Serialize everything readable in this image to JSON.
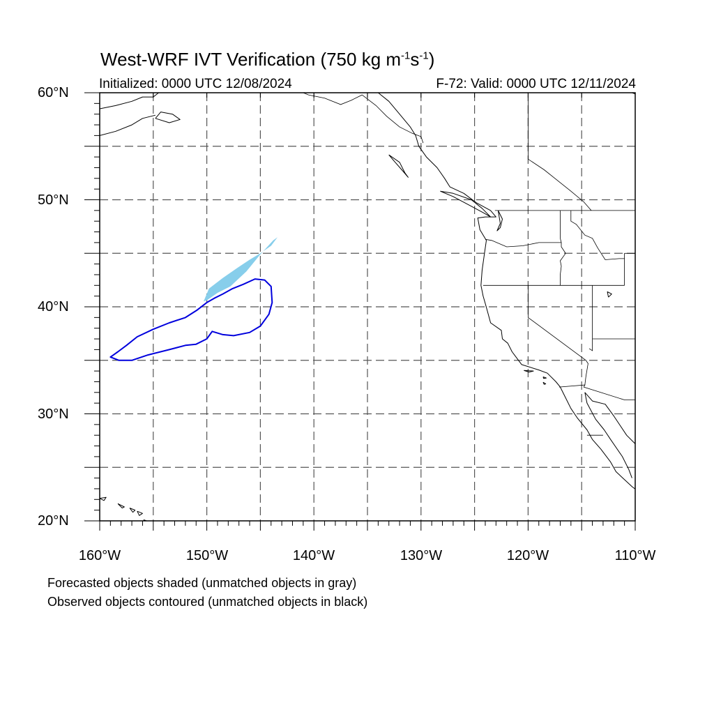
{
  "title": {
    "main": "West-WRF IVT Verification (750 kg m",
    "exp1": "-1",
    "mid": "s",
    "exp2": "-1",
    "end": ")"
  },
  "subtitle": {
    "left": "Initialized: 0000 UTC 12/08/2024",
    "right": "F-72: Valid: 0000 UTC 12/11/2024"
  },
  "lat_labels": [
    "60°N",
    "50°N",
    "40°N",
    "30°N",
    "20°N"
  ],
  "lon_labels": [
    "160°W",
    "150°W",
    "140°W",
    "130°W",
    "120°W",
    "110°W"
  ],
  "notes": {
    "line1": "Forecasted objects shaded (unmatched objects in gray)",
    "line2": "Observed objects contoured (unmatched objects in black)"
  },
  "map": {
    "lon_range": [
      -160,
      -110
    ],
    "lat_range": [
      20,
      60
    ],
    "grid_lon_step": 5,
    "grid_lat_step": 5,
    "grid_style": "dashed",
    "colors": {
      "forecast_fill": "#87ceeb",
      "observed_contour": "#0000dd",
      "coastline": "#000000",
      "grid": "#555555"
    },
    "forecast_object": [
      [
        -150.3,
        40.5
      ],
      [
        -149.8,
        41.7
      ],
      [
        -148.5,
        42.7
      ],
      [
        -147.2,
        43.6
      ],
      [
        -146.0,
        44.4
      ],
      [
        -145.0,
        45.0
      ],
      [
        -144.0,
        45.7
      ],
      [
        -143.4,
        46.5
      ],
      [
        -143.8,
        46.2
      ],
      [
        -145.0,
        44.9
      ],
      [
        -146.3,
        43.3
      ],
      [
        -147.8,
        41.9
      ],
      [
        -149.0,
        41.3
      ],
      [
        -150.0,
        40.6
      ]
    ],
    "observed_object": [
      [
        -159.0,
        35.3
      ],
      [
        -158.2,
        35.0
      ],
      [
        -157.0,
        35.0
      ],
      [
        -155.5,
        35.5
      ],
      [
        -153.5,
        36.0
      ],
      [
        -152.0,
        36.4
      ],
      [
        -151.0,
        36.5
      ],
      [
        -150.0,
        37.0
      ],
      [
        -149.5,
        37.7
      ],
      [
        -148.5,
        37.4
      ],
      [
        -147.5,
        37.3
      ],
      [
        -146.0,
        37.6
      ],
      [
        -145.0,
        38.2
      ],
      [
        -144.2,
        39.3
      ],
      [
        -143.9,
        40.4
      ],
      [
        -144.0,
        41.9
      ],
      [
        -144.6,
        42.5
      ],
      [
        -145.5,
        42.6
      ],
      [
        -146.6,
        42.1
      ],
      [
        -147.6,
        41.7
      ],
      [
        -148.5,
        41.2
      ],
      [
        -149.3,
        40.8
      ],
      [
        -150.0,
        40.4
      ],
      [
        -150.9,
        39.7
      ],
      [
        -152.0,
        39.0
      ],
      [
        -153.5,
        38.5
      ],
      [
        -155.0,
        37.9
      ],
      [
        -156.5,
        37.2
      ],
      [
        -157.5,
        36.4
      ],
      [
        -158.3,
        35.8
      ],
      [
        -159.0,
        35.3
      ]
    ],
    "coastlines": [
      [
        [
          -134.0,
          60.0
        ],
        [
          -133.0,
          59.2
        ],
        [
          -132.0,
          58.0
        ],
        [
          -131.0,
          56.8
        ],
        [
          -130.5,
          56.0
        ],
        [
          -130.2,
          55.0
        ],
        [
          -129.5,
          54.0
        ],
        [
          -128.5,
          53.0
        ],
        [
          -127.8,
          52.0
        ],
        [
          -127.3,
          51.2
        ],
        [
          -126.0,
          50.6
        ],
        [
          -124.8,
          49.7
        ],
        [
          -123.5,
          49.0
        ],
        [
          -123.0,
          48.4
        ],
        [
          -124.0,
          48.4
        ],
        [
          -124.7,
          48.3
        ],
        [
          -124.5,
          47.2
        ],
        [
          -123.9,
          46.2
        ],
        [
          -124.1,
          44.8
        ],
        [
          -124.3,
          43.4
        ],
        [
          -124.4,
          42.0
        ],
        [
          -124.2,
          41.0
        ],
        [
          -124.0,
          40.3
        ],
        [
          -123.8,
          39.6
        ],
        [
          -123.5,
          38.5
        ],
        [
          -122.5,
          37.8
        ],
        [
          -122.4,
          37.0
        ],
        [
          -121.9,
          36.6
        ],
        [
          -121.5,
          35.8
        ],
        [
          -120.6,
          34.6
        ],
        [
          -119.0,
          34.1
        ],
        [
          -118.2,
          33.8
        ],
        [
          -117.4,
          33.0
        ],
        [
          -117.0,
          32.5
        ],
        [
          -116.6,
          31.7
        ],
        [
          -116.0,
          30.5
        ],
        [
          -115.4,
          29.6
        ],
        [
          -114.5,
          28.5
        ],
        [
          -114.0,
          27.6
        ],
        [
          -113.2,
          26.7
        ],
        [
          -112.3,
          25.5
        ],
        [
          -111.8,
          24.6
        ],
        [
          -110.3,
          23.2
        ],
        [
          -109.9,
          22.9
        ]
      ],
      [
        [
          -114.7,
          32.0
        ],
        [
          -114.5,
          31.0
        ],
        [
          -113.7,
          29.5
        ],
        [
          -112.9,
          28.5
        ],
        [
          -112.3,
          27.6
        ],
        [
          -111.2,
          26.0
        ],
        [
          -110.6,
          24.8
        ],
        [
          -110.3,
          24.0
        ]
      ],
      [
        [
          -114.7,
          32.0
        ],
        [
          -114.0,
          31.2
        ],
        [
          -112.8,
          30.9
        ],
        [
          -112.0,
          29.8
        ],
        [
          -110.8,
          28.0
        ],
        [
          -110.0,
          27.2
        ]
      ],
      [
        [
          -128.2,
          50.8
        ],
        [
          -127.0,
          50.3
        ],
        [
          -125.5,
          49.5
        ],
        [
          -124.2,
          48.8
        ],
        [
          -123.5,
          48.4
        ],
        [
          -124.3,
          49.2
        ],
        [
          -125.3,
          50.0
        ],
        [
          -127.0,
          50.6
        ],
        [
          -128.2,
          50.8
        ]
      ],
      [
        [
          -133.0,
          54.2
        ],
        [
          -132.0,
          53.5
        ],
        [
          -131.5,
          52.5
        ],
        [
          -131.2,
          52.1
        ],
        [
          -131.8,
          52.8
        ],
        [
          -132.5,
          53.6
        ],
        [
          -133.0,
          54.2
        ]
      ],
      [
        [
          -160.0,
          58.5
        ],
        [
          -158.5,
          58.8
        ],
        [
          -157.0,
          59.2
        ],
        [
          -156.0,
          59.6
        ],
        [
          -155.0,
          59.6
        ],
        [
          -154.5,
          60.0
        ]
      ],
      [
        [
          -160.0,
          56.0
        ],
        [
          -158.5,
          56.4
        ],
        [
          -157.0,
          57.0
        ],
        [
          -156.0,
          57.6
        ],
        [
          -154.8,
          57.9
        ]
      ],
      [
        [
          -154.8,
          57.6
        ],
        [
          -153.5,
          57.2
        ],
        [
          -152.5,
          57.5
        ],
        [
          -153.2,
          58.0
        ],
        [
          -154.3,
          58.2
        ],
        [
          -154.8,
          57.6
        ]
      ],
      [
        [
          -110.3,
          60.0
        ],
        [
          -109.0,
          59.5
        ]
      ],
      [
        [
          -160.0,
          22.1
        ],
        [
          -159.4,
          22.2
        ],
        [
          -159.6,
          21.9
        ],
        [
          -160.0,
          22.1
        ]
      ],
      [
        [
          -158.3,
          21.6
        ],
        [
          -157.7,
          21.3
        ],
        [
          -157.9,
          21.2
        ],
        [
          -158.3,
          21.6
        ]
      ],
      [
        [
          -157.2,
          21.2
        ],
        [
          -156.7,
          21.0
        ],
        [
          -156.9,
          20.8
        ],
        [
          -157.2,
          21.2
        ]
      ],
      [
        [
          -156.5,
          20.9
        ],
        [
          -156.0,
          20.7
        ],
        [
          -156.3,
          20.5
        ],
        [
          -156.5,
          20.9
        ]
      ],
      [
        [
          -155.9,
          20.1
        ],
        [
          -155.0,
          19.8
        ],
        [
          -155.6,
          19.2
        ],
        [
          -155.9,
          20.1
        ]
      ],
      [
        [
          -120.4,
          34.05
        ],
        [
          -119.5,
          34.0
        ],
        [
          -119.9,
          33.9
        ],
        [
          -120.4,
          34.05
        ]
      ],
      [
        [
          -118.6,
          33.45
        ],
        [
          -118.3,
          33.35
        ],
        [
          -118.55,
          33.3
        ],
        [
          -118.6,
          33.45
        ]
      ],
      [
        [
          -118.6,
          32.95
        ],
        [
          -118.35,
          32.8
        ],
        [
          -118.5,
          32.75
        ],
        [
          -118.6,
          32.95
        ]
      ],
      [
        [
          -112.5,
          40.9
        ],
        [
          -112.2,
          41.2
        ],
        [
          -112.6,
          41.4
        ],
        [
          -112.5,
          40.9
        ]
      ],
      [
        [
          -122.8,
          49.0
        ],
        [
          -122.4,
          48.2
        ],
        [
          -122.6,
          47.4
        ],
        [
          -122.9,
          47.1
        ],
        [
          -122.6,
          47.8
        ],
        [
          -122.8,
          49.0
        ]
      ]
    ],
    "borders": [
      [
        [
          -141.0,
          60.0
        ],
        [
          -140.5,
          59.8
        ],
        [
          -139.0,
          59.5
        ],
        [
          -137.5,
          58.9
        ],
        [
          -136.5,
          59.3
        ],
        [
          -135.5,
          59.8
        ],
        [
          -134.2,
          58.8
        ],
        [
          -133.2,
          57.8
        ],
        [
          -132.0,
          56.8
        ],
        [
          -130.8,
          56.2
        ],
        [
          -130.0,
          55.9
        ],
        [
          -129.8,
          55.3
        ]
      ],
      [
        [
          -123.1,
          49.0
        ],
        [
          -110.0,
          49.0
        ]
      ],
      [
        [
          -117.0,
          49.0
        ],
        [
          -117.0,
          46.4
        ],
        [
          -116.9,
          46.0
        ],
        [
          -119.0,
          46.0
        ],
        [
          -120.5,
          45.7
        ],
        [
          -122.0,
          45.6
        ],
        [
          -123.4,
          46.2
        ],
        [
          -124.0,
          46.3
        ]
      ],
      [
        [
          -116.9,
          46.0
        ],
        [
          -116.9,
          45.6
        ],
        [
          -116.5,
          45.0
        ],
        [
          -117.0,
          44.3
        ],
        [
          -116.9,
          43.8
        ],
        [
          -117.0,
          43.0
        ],
        [
          -117.0,
          42.0
        ]
      ],
      [
        [
          -124.2,
          42.0
        ],
        [
          -111.0,
          42.0
        ]
      ],
      [
        [
          -120.0,
          42.0
        ],
        [
          -120.0,
          39.0
        ],
        [
          -114.6,
          35.0
        ],
        [
          -114.4,
          34.7
        ],
        [
          -114.6,
          33.5
        ],
        [
          -114.7,
          32.7
        ]
      ],
      [
        [
          -114.0,
          42.0
        ],
        [
          -114.0,
          37.0
        ],
        [
          -114.0,
          35.9
        ],
        [
          -114.3,
          36.1
        ]
      ],
      [
        [
          -114.0,
          37.0
        ],
        [
          -110.0,
          37.0
        ]
      ],
      [
        [
          -111.0,
          45.0
        ],
        [
          -111.0,
          42.0
        ]
      ],
      [
        [
          -111.0,
          45.0
        ],
        [
          -110.0,
          45.0
        ]
      ],
      [
        [
          -116.0,
          49.0
        ],
        [
          -116.0,
          48.0
        ],
        [
          -115.5,
          47.7
        ],
        [
          -114.7,
          46.7
        ],
        [
          -114.0,
          46.4
        ],
        [
          -113.5,
          45.5
        ],
        [
          -112.8,
          44.4
        ],
        [
          -111.5,
          44.5
        ],
        [
          -111.0,
          44.5
        ]
      ],
      [
        [
          -117.1,
          32.5
        ],
        [
          -114.7,
          32.7
        ],
        [
          -114.8,
          32.5
        ],
        [
          -111.0,
          31.3
        ],
        [
          -110.0,
          31.3
        ]
      ],
      [
        [
          -114.5,
          28.0
        ],
        [
          -113.0,
          28.0
        ]
      ],
      [
        [
          -109.5,
          60.0
        ],
        [
          -120.0,
          60.0
        ],
        [
          -120.0,
          53.8
        ],
        [
          -118.5,
          52.8
        ],
        [
          -117.5,
          52.0
        ],
        [
          -116.0,
          50.8
        ],
        [
          -114.8,
          49.8
        ],
        [
          -114.1,
          49.0
        ]
      ]
    ]
  }
}
